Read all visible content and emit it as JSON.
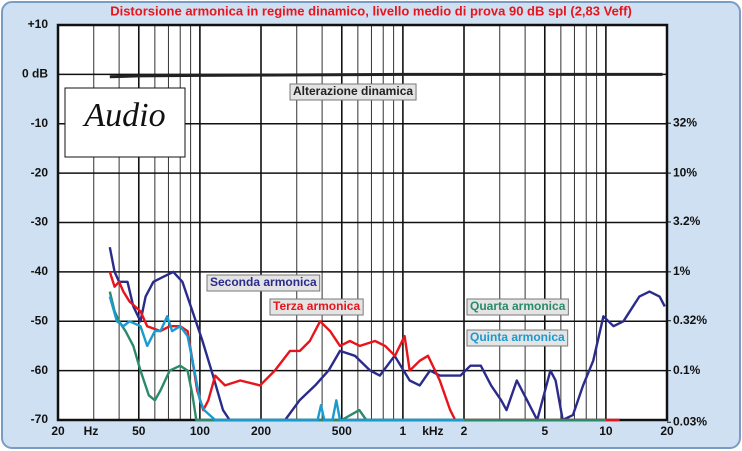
{
  "chart_data": {
    "type": "line",
    "title": "Distorsione armonica in regime dinamico, livello medio di prova 90 dB spl (2,83 Veff)",
    "logo": "Audio",
    "x_unit_labels": [
      "Hz",
      "kHz"
    ],
    "xlim": [
      20,
      20000
    ],
    "xlog": true,
    "xticks": [
      20,
      50,
      100,
      200,
      500,
      {
        "value": 1000,
        "label": "1"
      },
      {
        "value": 2000,
        "label": "2"
      },
      {
        "value": 5000,
        "label": "5"
      },
      {
        "value": 10000,
        "label": "10"
      },
      {
        "value": 20000,
        "label": "20"
      }
    ],
    "xminorticks": [
      30,
      40,
      60,
      70,
      80,
      90,
      300,
      400,
      600,
      700,
      800,
      900,
      3000,
      4000,
      6000,
      7000,
      8000,
      9000
    ],
    "ylim": [
      -70,
      10
    ],
    "yticks": [
      {
        "value": 10,
        "label": "+10"
      },
      {
        "value": 0,
        "label": "0 dB"
      },
      -10,
      -20,
      -30,
      -40,
      -50,
      -60,
      -70
    ],
    "y2lim": [
      0.0316,
      316
    ],
    "y2log": true,
    "y2ticks": [
      {
        "value": 32,
        "label": "32%"
      },
      {
        "value": 10,
        "label": "10%"
      },
      {
        "value": 3.2,
        "label": "3.2%"
      },
      {
        "value": 1,
        "label": "1%"
      },
      {
        "value": 0.32,
        "label": "0.32%"
      },
      {
        "value": 0.1,
        "label": "0.1%"
      },
      {
        "value": 0.03,
        "label": "0.03%"
      }
    ],
    "grid": true,
    "series": [
      {
        "name": "Alterazione dinamica",
        "color": "#222222",
        "x": [
          36,
          50,
          100,
          1000,
          19000
        ],
        "values": [
          -0.5,
          -0.3,
          -0.2,
          0,
          0
        ]
      },
      {
        "name": "Seconda armonica",
        "color": "#2b2b8c",
        "x": [
          36,
          38,
          40,
          42,
          44,
          47,
          51,
          54,
          59,
          66,
          74,
          82,
          92,
          103,
          116,
          130,
          140,
          200,
          263,
          310,
          370,
          430,
          490,
          580,
          690,
          770,
          910,
          1080,
          1210,
          1360,
          1520,
          1710,
          1920,
          2150,
          2420,
          2720,
          3050,
          3240,
          3640,
          4090,
          4590,
          5330,
          5650,
          6130,
          6880,
          7720,
          8660,
          9720,
          10900,
          12200,
          14600,
          16400,
          18400,
          19500
        ],
        "values": [
          -35,
          -40,
          -42,
          -42,
          -42,
          -47,
          -50,
          -45,
          -42,
          -41,
          -40,
          -42,
          -48,
          -54,
          -61,
          -68,
          -70,
          -70,
          -70,
          -66,
          -63,
          -60,
          -56,
          -57,
          -60,
          -61,
          -57,
          -62,
          -63,
          -60,
          -61,
          -61,
          -61,
          -59,
          -59,
          -63,
          -66,
          -68,
          -62,
          -66,
          -70,
          -60,
          -62,
          -70,
          -69,
          -63,
          -58,
          -49,
          -51,
          -50,
          -45,
          -44,
          -45,
          -47
        ]
      },
      {
        "name": "Terza armonica",
        "color": "#e8141c",
        "x": [
          36,
          38,
          40,
          42,
          45,
          51,
          55,
          64,
          71,
          80,
          87,
          92,
          97,
          104,
          110,
          119,
          133,
          158,
          198,
          234,
          278,
          311,
          348,
          391,
          438,
          490,
          548,
          614,
          729,
          817,
          914,
          1020,
          1080,
          1210,
          1330,
          1520,
          1710,
          1810,
          11700
        ],
        "values": [
          -40,
          -43,
          -42,
          -44,
          -46,
          -48,
          -51,
          -52,
          -51,
          -51,
          -52,
          -58,
          -64,
          -68,
          -66,
          -61,
          -63,
          -62,
          -63,
          -60,
          -56,
          -56,
          -54,
          -50,
          -52,
          -55,
          -54,
          -55,
          -54,
          -55,
          -57,
          -53,
          -60,
          -58,
          -57,
          -62,
          -68,
          -70,
          -70
        ]
      },
      {
        "name": "Quarta armonica",
        "color": "#2a8a6a",
        "x": [
          36,
          38,
          40,
          43,
          47,
          51,
          56,
          60,
          64,
          71,
          80,
          87,
          92,
          96,
          500,
          610,
          660,
          10000
        ],
        "values": [
          -44,
          -48,
          -50,
          -52,
          -55,
          -60,
          -65,
          -66,
          -64,
          -60,
          -59,
          -60,
          -65,
          -70,
          -70,
          -68,
          -70,
          -70
        ]
      },
      {
        "name": "Quinta armonica",
        "color": "#1a9ad0",
        "x": [
          36,
          39,
          42,
          45,
          51,
          55,
          60,
          64,
          69,
          73,
          80,
          87,
          95,
          100,
          105,
          119,
          380,
          395,
          410,
          450,
          470,
          490,
          2000
        ],
        "values": [
          -45,
          -50,
          -51,
          -50,
          -51,
          -55,
          -52,
          -52,
          -49,
          -52,
          -51,
          -53,
          -61,
          -66,
          -68,
          -70,
          -70,
          -67,
          -70,
          -70,
          -66,
          -70,
          -70
        ]
      }
    ]
  }
}
